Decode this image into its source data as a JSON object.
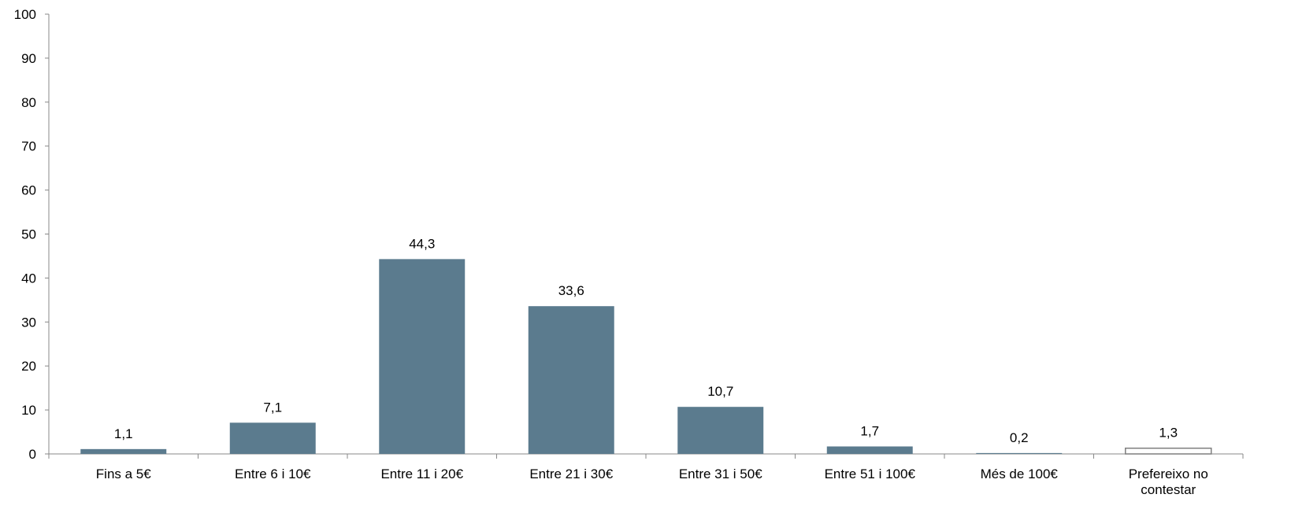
{
  "chart_data": {
    "type": "bar",
    "title": "",
    "xlabel": "",
    "ylabel": "",
    "ylim": [
      0,
      100
    ],
    "yticks": [
      "0",
      "10",
      "20",
      "30",
      "40",
      "50",
      "60",
      "70",
      "80",
      "90",
      "100"
    ],
    "categories": [
      "Fins a 5€",
      "Entre 6 i 10€",
      "Entre 11 i 20€",
      "Entre 21 i 30€",
      "Entre 31 i 50€",
      "Entre 51 i 100€",
      "Més de 100€",
      "Prefereixo no contestar"
    ],
    "category_label_lines": [
      [
        "Fins a 5€"
      ],
      [
        "Entre 6 i 10€"
      ],
      [
        "Entre 11 i 20€"
      ],
      [
        "Entre 21 i 30€"
      ],
      [
        "Entre 31 i 50€"
      ],
      [
        "Entre 51 i 100€"
      ],
      [
        "Més de 100€"
      ],
      [
        "Prefereixo no",
        "contestar"
      ]
    ],
    "values": [
      1.1,
      7.1,
      44.3,
      33.6,
      10.7,
      1.7,
      0.2,
      1.3
    ],
    "value_labels": [
      "1,1",
      "7,1",
      "44,3",
      "33,6",
      "10,7",
      "1,7",
      "0,2",
      "1,3"
    ],
    "bar_styles": [
      "filled",
      "filled",
      "filled",
      "filled",
      "filled",
      "filled",
      "filled",
      "outline"
    ],
    "grid": false,
    "legend": "none",
    "colors": {
      "bar_fill": "#5b7b8e",
      "outline_bar_fill": "#ffffff",
      "outline_bar_stroke": "#7f7f7f",
      "axis": "#888888",
      "text": "#000000"
    }
  }
}
